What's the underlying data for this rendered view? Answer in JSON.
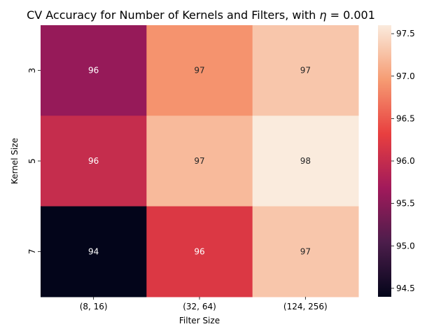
{
  "chart_data": {
    "type": "heatmap",
    "title_prefix": "CV Accuracy for Number of Kernels and Filters, with ",
    "title_eta": "η",
    "title_suffix": " = 0.001",
    "xlabel": "Filter Size",
    "ylabel": "Kernel Size",
    "x_categories": [
      "(8, 16)",
      "(32, 64)",
      "(124, 256)"
    ],
    "y_categories": [
      "3",
      "5",
      "7"
    ],
    "values": [
      [
        95.6,
        96.9,
        97.3
      ],
      [
        96.0,
        97.2,
        97.6
      ],
      [
        94.4,
        96.2,
        97.3
      ]
    ],
    "annotations": [
      [
        "96",
        "97",
        "97"
      ],
      [
        "96",
        "97",
        "98"
      ],
      [
        "94",
        "96",
        "97"
      ]
    ],
    "colorbar": {
      "min": 94.4,
      "max": 97.6,
      "ticks": [
        "94.5",
        "95.0",
        "95.5",
        "96.0",
        "96.5",
        "97.0",
        "97.5"
      ],
      "colormap": "rocket",
      "colormap_stops": [
        "#03051a",
        "#4c1d4b",
        "#a11a5b",
        "#e83f3f",
        "#f69c73",
        "#faebdd"
      ]
    }
  }
}
